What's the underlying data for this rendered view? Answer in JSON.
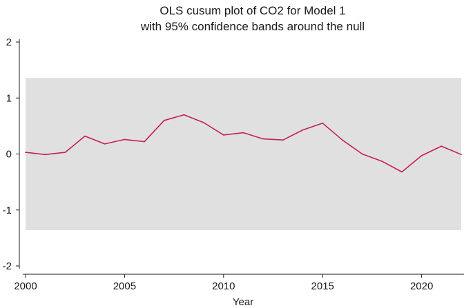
{
  "chart_data": {
    "type": "line",
    "title_lines": [
      "OLS cusum plot of CO2 for Model 1",
      "with 95% confidence bands around the null"
    ],
    "xlabel": "Year",
    "ylabel": "",
    "x": [
      2000,
      2001,
      2002,
      2003,
      2004,
      2005,
      2006,
      2007,
      2008,
      2009,
      2010,
      2011,
      2012,
      2013,
      2014,
      2015,
      2016,
      2017,
      2018,
      2019,
      2020,
      2021,
      2022
    ],
    "series": [
      {
        "name": "CUSUM",
        "values": [
          0.03,
          -0.01,
          0.03,
          0.32,
          0.18,
          0.26,
          0.22,
          0.6,
          0.7,
          0.56,
          0.34,
          0.38,
          0.27,
          0.25,
          0.43,
          0.55,
          0.25,
          0.0,
          -0.13,
          -0.32,
          -0.03,
          0.14,
          -0.01
        ],
        "color": "#c41e5a"
      }
    ],
    "band": {
      "lower": -1.36,
      "upper": 1.36,
      "color": "#e0e0e0"
    },
    "xlim": [
      2000,
      2022
    ],
    "ylim": [
      -2,
      2
    ],
    "xticks": [
      2000,
      2005,
      2010,
      2015,
      2020
    ],
    "yticks": [
      -2,
      -1,
      0,
      1,
      2
    ],
    "ytick_labels": [
      "-2",
      "-1",
      "0",
      "1",
      "2"
    ],
    "grid": false,
    "legend": "none"
  }
}
